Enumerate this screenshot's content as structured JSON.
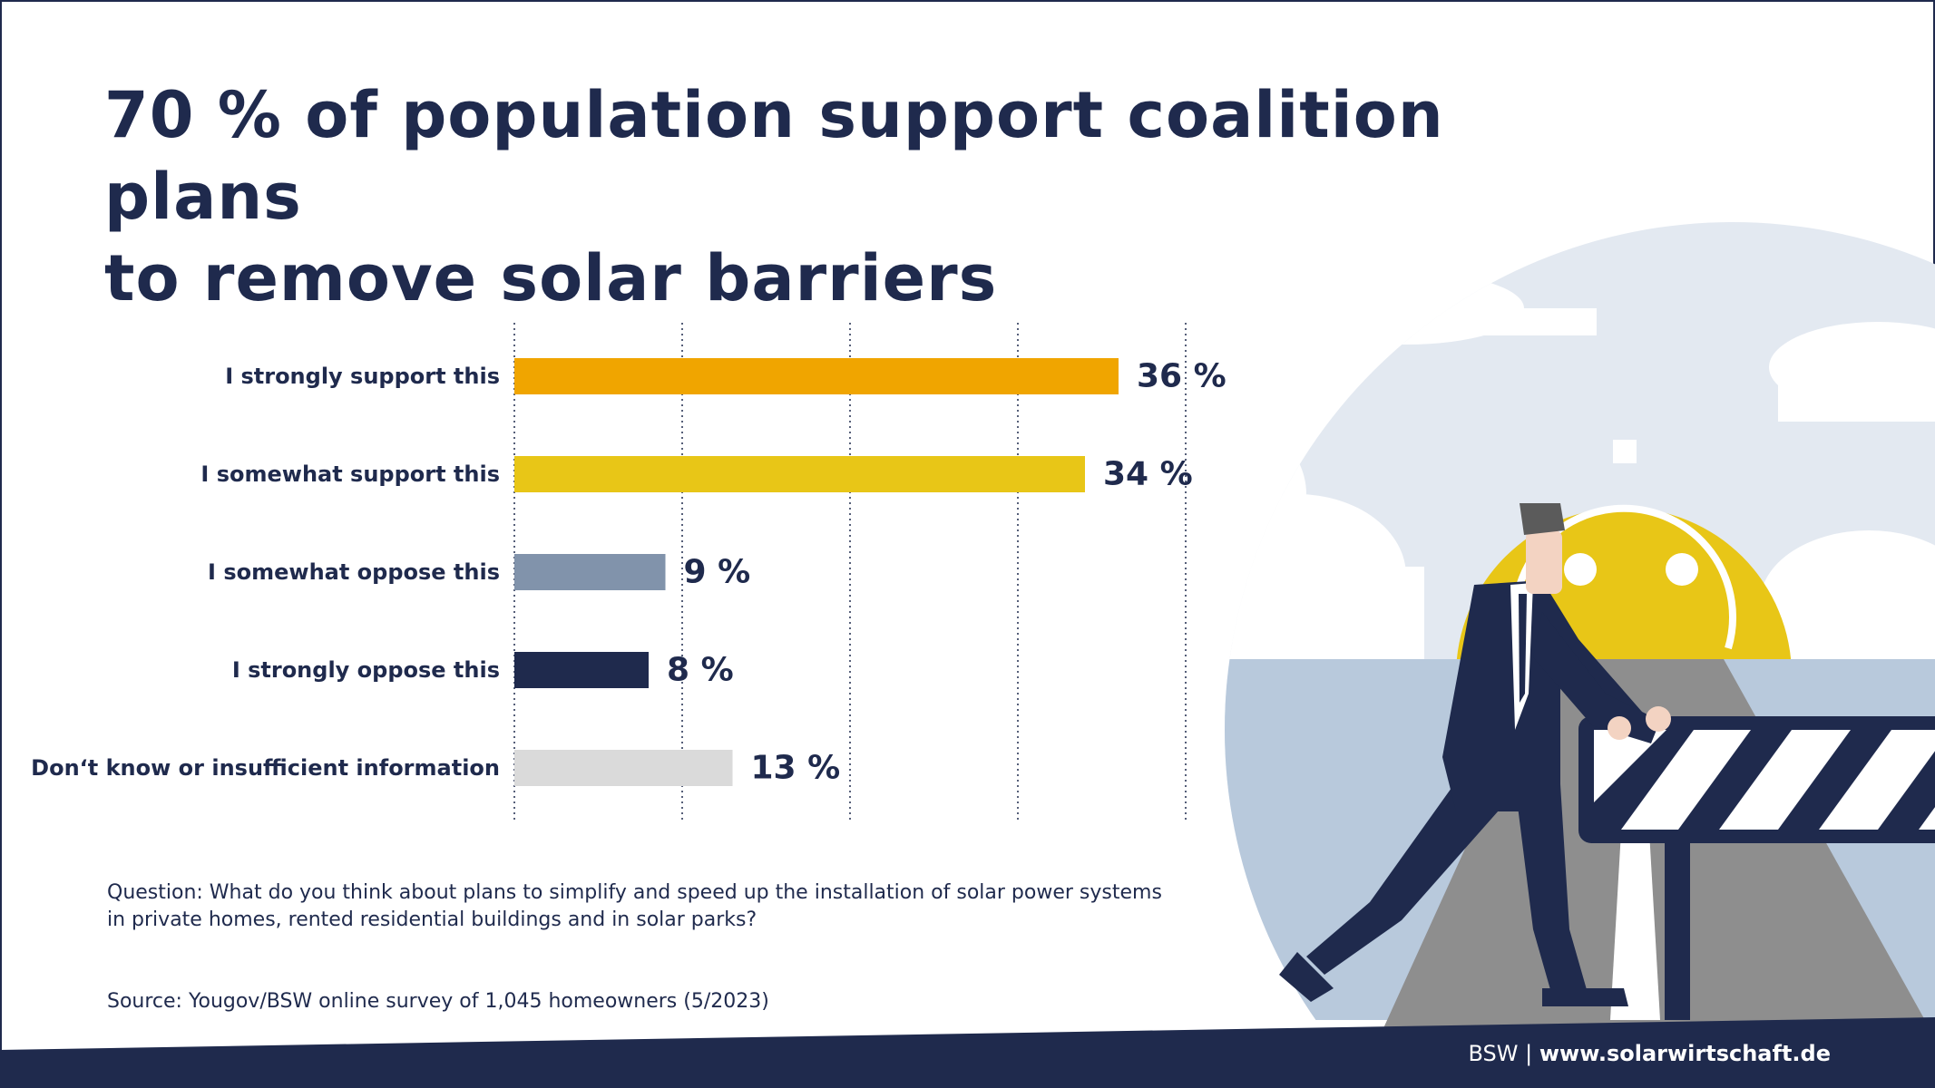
{
  "title_lines": [
    "70 % of population support coalition plans",
    "to remove solar barriers"
  ],
  "chart_data": {
    "type": "bar",
    "orientation": "horizontal",
    "categories": [
      "I strongly support this",
      "I somewhat support this",
      "I somewhat oppose this",
      "I strongly oppose this",
      "Don‘t know or insufficient information"
    ],
    "values": [
      36,
      34,
      9,
      8,
      13
    ],
    "value_labels": [
      "36 %",
      "34 %",
      "9 %",
      "8 %",
      "13 %"
    ],
    "colors": [
      "#f0a500",
      "#e8c617",
      "#8193ab",
      "#1f2a4d",
      "#dadada"
    ],
    "xlim": [
      0,
      40
    ],
    "grid": true
  },
  "question": "Question: What do you think about plans to simplify and speed up the installation of solar power systems in private homes, rented residential buildings and in solar parks?",
  "source": "Source: Yougov/BSW online survey of 1,045 homeowners (5/2023)",
  "footer": {
    "org": "BSW",
    "separator": "|",
    "url": "www.solarwirtschaft.de"
  },
  "colors": {
    "navy": "#1f2a4d",
    "sky": "#e3e9f1",
    "sea": "#b8c9dc",
    "sun": "#e8c617",
    "road": "#8e8e8e"
  }
}
